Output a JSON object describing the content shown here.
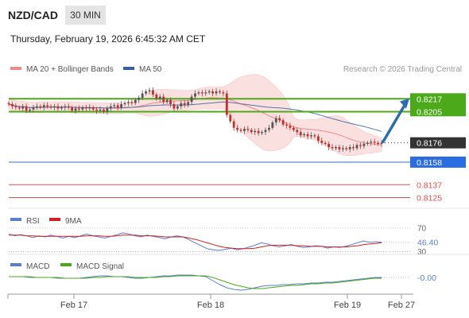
{
  "header": {
    "symbol": "NZD/CAD",
    "timeframe": "30 MIN",
    "datetime": "Thursday, February 19, 2026 6:45:32 AM CET"
  },
  "legend": {
    "ma20": "MA 20 + Bollinger Bands",
    "ma50": "MA 50",
    "credit": "Research © 2026 Trading Central"
  },
  "colors": {
    "ma20": "#f08a8a",
    "ma50": "#3a5fa0",
    "bollinger_fill": "#fbe0e0",
    "resistance": "#4caa1a",
    "support": "#2a6de0",
    "target": "#4caa1a",
    "level_red": "#e05050",
    "arrow": "#2a6db5",
    "rsi": "#5a7fd0",
    "rsi_ma": "#d02020",
    "macd": "#5a7fd0",
    "macd_signal": "#4caa1a",
    "candle_up": "#555555",
    "candle_down": "#c0302a"
  },
  "chart_data": [
    {
      "type": "candlestick",
      "panel": "price",
      "ylim": [
        0.8115,
        0.8235
      ],
      "x_ticks": [
        "Feb 17",
        "Feb 18",
        "Feb 19",
        "Feb 27"
      ],
      "last_price": 0.8176,
      "close_series": [
        0.8212,
        0.821,
        0.8209,
        0.8208,
        0.821,
        0.8206,
        0.8207,
        0.8209,
        0.821,
        0.8209,
        0.8211,
        0.821,
        0.8209,
        0.821,
        0.8208,
        0.8209,
        0.821,
        0.8209,
        0.8206,
        0.8208,
        0.8207,
        0.8209,
        0.8208,
        0.8209,
        0.8207,
        0.8206,
        0.8207,
        0.8205,
        0.8208,
        0.821,
        0.8211,
        0.8209,
        0.8212,
        0.8213,
        0.8214,
        0.8213,
        0.8216,
        0.8218,
        0.8222,
        0.8224,
        0.8225,
        0.8221,
        0.8217,
        0.8219,
        0.8214,
        0.8216,
        0.8212,
        0.8208,
        0.821,
        0.8213,
        0.8211,
        0.8214,
        0.8219,
        0.8222,
        0.8223,
        0.8222,
        0.8223,
        0.8224,
        0.8222,
        0.8224,
        0.8223,
        0.8222,
        0.8202,
        0.8196,
        0.819,
        0.8188,
        0.8187,
        0.8189,
        0.8188,
        0.8186,
        0.8187,
        0.8185,
        0.8186,
        0.8188,
        0.819,
        0.8195,
        0.8199,
        0.8197,
        0.8193,
        0.8192,
        0.819,
        0.8188,
        0.8186,
        0.8183,
        0.8184,
        0.8182,
        0.8183,
        0.8182,
        0.8178,
        0.8176,
        0.8175,
        0.8172,
        0.8171,
        0.8172,
        0.817,
        0.8171,
        0.817,
        0.8172,
        0.8171,
        0.8174,
        0.8173,
        0.8175,
        0.8176,
        0.8177,
        0.8176,
        0.8175,
        0.8176
      ],
      "levels": [
        {
          "label": "0.8217",
          "value": 0.8217,
          "style": "resistance-box"
        },
        {
          "label": "0.8205",
          "value": 0.8205,
          "style": "resistance-line"
        },
        {
          "label": "0.8176",
          "value": 0.8176,
          "style": "last-price"
        },
        {
          "label": "0.8158",
          "value": 0.8158,
          "style": "support"
        },
        {
          "label": "0.8137",
          "value": 0.8137,
          "style": "level-red"
        },
        {
          "label": "0.8125",
          "value": 0.8125,
          "style": "level-red"
        }
      ],
      "indicators": [
        "MA 20 + Bollinger Bands",
        "MA 50"
      ]
    },
    {
      "type": "line",
      "panel": "rsi",
      "ylim": [
        28,
        74
      ],
      "tick_labels": [
        {
          "label": "70",
          "value": 70
        },
        {
          "label": "30",
          "value": 30
        }
      ],
      "current_label": "46.40",
      "series": [
        {
          "name": "RSI",
          "values": [
            60,
            57,
            59,
            57,
            54,
            57,
            55,
            58,
            56,
            53,
            56,
            54,
            57,
            60,
            57,
            55,
            53,
            56,
            59,
            62,
            60,
            57,
            55,
            58,
            56,
            54,
            52,
            55,
            57,
            55,
            50,
            45,
            40,
            35,
            33,
            32,
            34,
            36,
            33,
            35,
            38,
            41,
            45,
            43,
            40,
            38,
            40,
            42,
            39,
            37,
            38,
            40,
            39,
            36,
            38,
            37,
            39,
            42,
            45,
            48,
            46,
            47,
            46
          ]
        },
        {
          "name": "9MA",
          "values": [
            58,
            58,
            58,
            57,
            57,
            56,
            56,
            56,
            56,
            56,
            56,
            56,
            56,
            57,
            57,
            57,
            56,
            56,
            57,
            58,
            58,
            58,
            57,
            57,
            57,
            56,
            55,
            55,
            55,
            55,
            53,
            51,
            48,
            45,
            42,
            39,
            37,
            36,
            35,
            35,
            35,
            36,
            38,
            40,
            41,
            41,
            41,
            41,
            40,
            40,
            39,
            39,
            39,
            38,
            38,
            38,
            38,
            39,
            40,
            42,
            43,
            44,
            45
          ]
        }
      ]
    },
    {
      "type": "line",
      "panel": "macd",
      "ylim": [
        -0.002,
        0.0005
      ],
      "tick_labels": [
        {
          "label": "-0.00",
          "value": 0
        }
      ],
      "series": [
        {
          "name": "MACD",
          "values": [
            0.0001,
            0.0001,
            0.0001,
            0,
            0,
            0,
            0,
            -0.0001,
            -0.0001,
            -0.0001,
            -0.0001,
            0,
            0.0001,
            0.0002,
            0.0002,
            0.0001,
            0.0001,
            0,
            -0.0001,
            -0.0001,
            0,
            0.0001,
            0.0002,
            0.0002,
            0.0003,
            0.0003,
            0.0003,
            0.0002,
            0.0001,
            -0.0004,
            -0.0009,
            -0.0013,
            -0.0015,
            -0.0016,
            -0.0015,
            -0.0013,
            -0.0011,
            -0.001,
            -0.001,
            -0.0009,
            -0.0009,
            -0.0008,
            -0.0008,
            -0.0007,
            -0.0007,
            -0.0006,
            -0.0006,
            -0.0005,
            -0.0004,
            -0.0003,
            -0.0002,
            -0.0001,
            0,
            0
          ]
        },
        {
          "name": "MACD Signal",
          "values": [
            0.0001,
            0.0001,
            0.0001,
            0.0001,
            0,
            0,
            0,
            0,
            -0.0001,
            -0.0001,
            -0.0001,
            -0.0001,
            0,
            0,
            0.0001,
            0.0001,
            0.0001,
            0.0001,
            0,
            0,
            0,
            0,
            0.0001,
            0.0001,
            0.0002,
            0.0002,
            0.0002,
            0.0002,
            0.0002,
            0,
            -0.0003,
            -0.0006,
            -0.0009,
            -0.0011,
            -0.0013,
            -0.0014,
            -0.0014,
            -0.0013,
            -0.0012,
            -0.0011,
            -0.001,
            -0.001,
            -0.0009,
            -0.0008,
            -0.0008,
            -0.0007,
            -0.0007,
            -0.0006,
            -0.0005,
            -0.0004,
            -0.0003,
            -0.0002,
            -0.0001,
            -0.0001
          ]
        }
      ]
    }
  ]
}
